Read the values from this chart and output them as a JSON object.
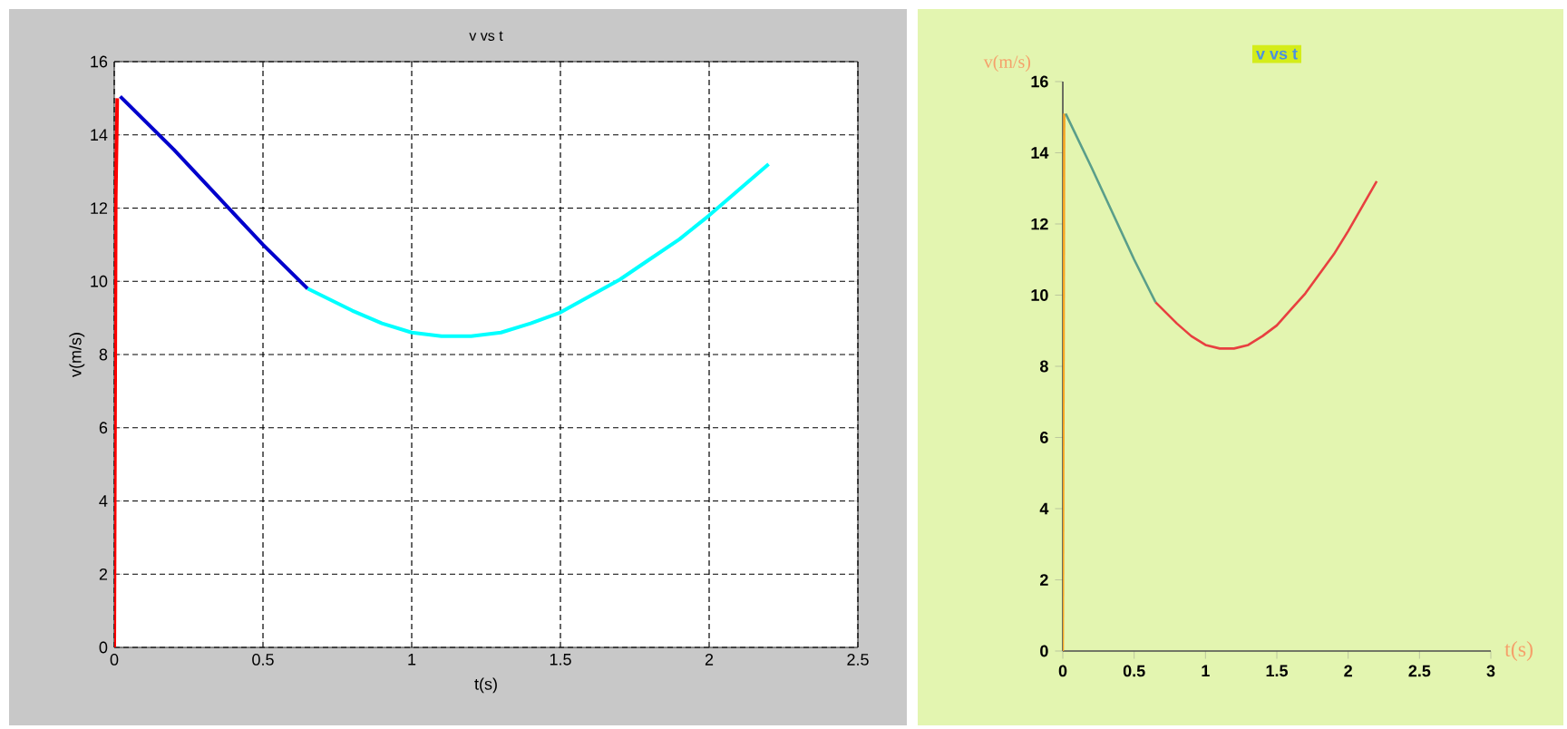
{
  "chart_data": [
    {
      "type": "line",
      "title": "v vs t",
      "xlabel": "t(s)",
      "ylabel": "v(m/s)",
      "xlim": [
        0,
        2.5
      ],
      "ylim": [
        0,
        16
      ],
      "xticks": [
        0,
        0.5,
        1,
        1.5,
        2,
        2.5
      ],
      "yticks": [
        0,
        2,
        4,
        6,
        8,
        10,
        12,
        14,
        16
      ],
      "grid": true,
      "line_style": "solid",
      "series": [
        {
          "color": "#ff0000",
          "x": [
            0,
            0.005,
            0.01
          ],
          "values": [
            0,
            12.3,
            15
          ]
        },
        {
          "color": "#0000cc",
          "x": [
            0.02,
            0.2,
            0.35,
            0.5,
            0.65
          ],
          "values": [
            15.05,
            13.6,
            12.3,
            11.0,
            9.8
          ]
        },
        {
          "color": "#00ffff",
          "x": [
            0.65,
            0.8,
            0.9,
            1.0,
            1.1,
            1.2,
            1.3,
            1.4,
            1.5,
            1.6,
            1.7,
            1.8,
            1.9,
            2.0,
            2.1,
            2.2
          ],
          "values": [
            9.8,
            9.2,
            8.85,
            8.6,
            8.5,
            8.5,
            8.6,
            8.85,
            9.15,
            9.6,
            10.05,
            10.6,
            11.15,
            11.8,
            12.5,
            13.2
          ]
        }
      ]
    },
    {
      "type": "line",
      "title": "v vs t",
      "xlabel": "t(s)",
      "ylabel": "v(m/s)",
      "xlim": [
        0,
        3
      ],
      "ylim": [
        0,
        16
      ],
      "xticks": [
        0,
        0.5,
        1,
        1.5,
        2,
        2.5,
        3
      ],
      "yticks": [
        0,
        2,
        4,
        6,
        8,
        10,
        12,
        14,
        16
      ],
      "grid": false,
      "line_style": "solid",
      "series": [
        {
          "color": "#f5a623",
          "x": [
            0,
            0.01
          ],
          "values": [
            0,
            15.1
          ]
        },
        {
          "color": "#5a9e8a",
          "x": [
            0.02,
            0.2,
            0.35,
            0.5,
            0.65
          ],
          "values": [
            15.1,
            13.6,
            12.3,
            11.0,
            9.8
          ]
        },
        {
          "color": "#e84040",
          "x": [
            0.65,
            0.8,
            0.9,
            1.0,
            1.1,
            1.2,
            1.3,
            1.4,
            1.5,
            1.6,
            1.7,
            1.8,
            1.9,
            2.0,
            2.1,
            2.2
          ],
          "values": [
            9.8,
            9.2,
            8.85,
            8.6,
            8.5,
            8.5,
            8.6,
            8.85,
            9.15,
            9.6,
            10.05,
            10.6,
            11.15,
            11.8,
            12.5,
            13.2
          ]
        }
      ]
    }
  ]
}
